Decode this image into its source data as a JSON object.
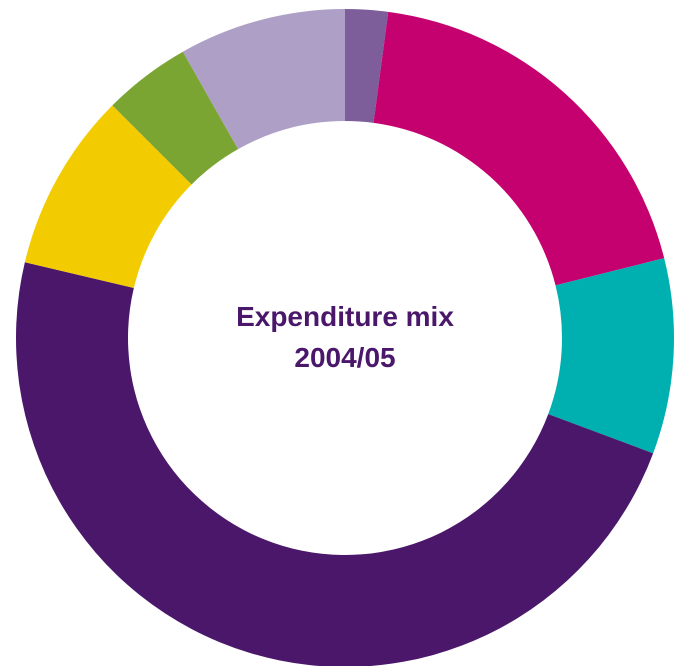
{
  "chart_data": {
    "type": "pie",
    "variant": "donut",
    "title_lines": [
      "Expenditure mix",
      "2004/05"
    ],
    "legend": "none",
    "grid": false,
    "slices": [
      {
        "value": 2.1,
        "color": "#7d5e9b"
      },
      {
        "value": 19.0,
        "color": "#c5006f"
      },
      {
        "value": 9.6,
        "color": "#00b0b0"
      },
      {
        "value": 48.0,
        "color": "#4a176a"
      },
      {
        "value": 8.8,
        "color": "#f2cb00"
      },
      {
        "value": 4.3,
        "color": "#7ba533"
      },
      {
        "value": 8.2,
        "color": "#ae9fc6"
      }
    ]
  }
}
